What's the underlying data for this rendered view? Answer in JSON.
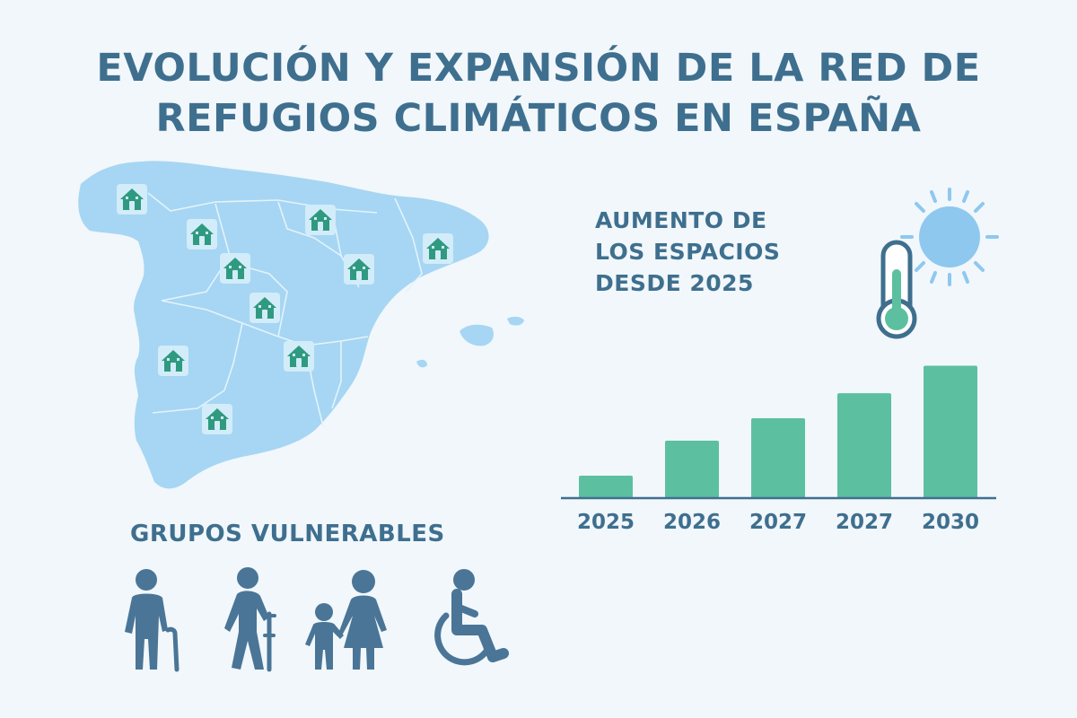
{
  "title": {
    "line1": "EVOLUCIÓN Y EXPANSIÓN DE LA RED DE",
    "line2": "REFUGIOS CLIMÁTICOS EN ESPAÑA"
  },
  "bar_chart_title": {
    "line1": "AUMENTO DE",
    "line2": "LOS ESPACIOS",
    "line3": "DESDE 2025"
  },
  "groups": {
    "title": "GRUPOS VULNERABLES",
    "icons": [
      "elderly-person-icon",
      "person-with-crutch-icon",
      "parent-with-child-icon",
      "wheelchair-icon"
    ]
  },
  "map": {
    "icon": "house-icon",
    "refuge_count": 10
  },
  "colors": {
    "title": "#3f6f8e",
    "map_fill": "#a6d6f3",
    "bar": "#5cc0a0",
    "house": "#2f9a7f",
    "people": "#4a7597",
    "sun": "#8ec8ef"
  },
  "chart_data": {
    "type": "bar",
    "categories": [
      "2025",
      "2026",
      "2027",
      "2027",
      "2030"
    ],
    "values": [
      18,
      46,
      64,
      84,
      106
    ],
    "ylim": [
      0,
      115
    ],
    "grid": false
  }
}
